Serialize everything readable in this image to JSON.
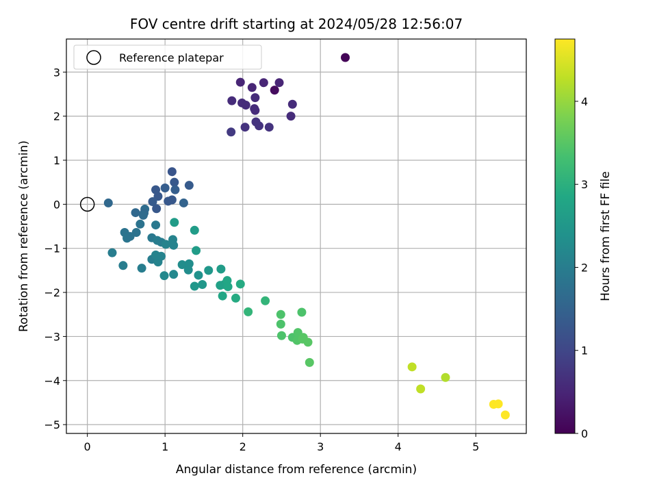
{
  "chart_data": {
    "type": "scatter",
    "title": "FOV centre drift starting at 2024/05/28 12:56:07",
    "xlabel": "Angular distance from reference (arcmin)",
    "ylabel": "Rotation from reference (arcmin)",
    "xlim": [
      -0.27,
      5.65
    ],
    "ylim": [
      -5.2,
      3.75
    ],
    "xticks": [
      0,
      1,
      2,
      3,
      4,
      5
    ],
    "yticks": [
      3,
      2,
      1,
      0,
      -1,
      -2,
      -3,
      -4,
      -5
    ],
    "grid": true,
    "legend": {
      "placement": "upper-left",
      "entries": [
        "Reference platepar"
      ]
    },
    "reference_point": {
      "x": 0,
      "y": 0,
      "label": "Reference platepar"
    },
    "colorbar": {
      "label": "Hours from first FF file",
      "range": [
        0,
        4.75
      ],
      "ticks": [
        0,
        1,
        2,
        3,
        4
      ],
      "colormap": "viridis"
    },
    "points": [
      [
        3.32,
        3.33,
        0.05
      ],
      [
        2.41,
        2.59,
        0.15
      ],
      [
        1.97,
        2.77,
        0.5
      ],
      [
        2.12,
        2.65,
        0.5
      ],
      [
        2.27,
        2.76,
        0.5
      ],
      [
        2.47,
        2.76,
        0.5
      ],
      [
        1.86,
        2.35,
        0.6
      ],
      [
        1.99,
        2.3,
        0.6
      ],
      [
        2.04,
        2.25,
        0.6
      ],
      [
        2.16,
        2.42,
        0.6
      ],
      [
        2.15,
        2.17,
        0.6
      ],
      [
        2.16,
        2.13,
        0.6
      ],
      [
        2.64,
        2.27,
        0.6
      ],
      [
        2.62,
        2.0,
        0.6
      ],
      [
        2.17,
        1.87,
        0.7
      ],
      [
        2.03,
        1.75,
        0.7
      ],
      [
        2.21,
        1.78,
        0.7
      ],
      [
        2.34,
        1.75,
        0.7
      ],
      [
        1.85,
        1.64,
        0.8
      ],
      [
        1.09,
        0.74,
        1.25
      ],
      [
        1.12,
        0.5,
        1.3
      ],
      [
        1.31,
        0.43,
        1.35
      ],
      [
        1.0,
        0.37,
        1.4
      ],
      [
        1.13,
        0.33,
        1.4
      ],
      [
        0.88,
        0.33,
        1.3
      ],
      [
        0.91,
        0.18,
        1.3
      ],
      [
        1.04,
        0.07,
        1.3
      ],
      [
        1.09,
        0.1,
        1.3
      ],
      [
        0.84,
        0.06,
        1.35
      ],
      [
        0.89,
        -0.1,
        1.3
      ],
      [
        0.27,
        0.03,
        1.6
      ],
      [
        1.24,
        0.03,
        1.5
      ],
      [
        0.62,
        -0.19,
        1.6
      ],
      [
        0.74,
        -0.11,
        1.7
      ],
      [
        0.73,
        -0.2,
        1.6
      ],
      [
        0.72,
        -0.25,
        1.65
      ],
      [
        0.68,
        -0.45,
        1.8
      ],
      [
        0.88,
        -0.47,
        1.9
      ],
      [
        0.63,
        -0.64,
        1.8
      ],
      [
        0.48,
        -0.64,
        1.8
      ],
      [
        0.51,
        -0.77,
        1.85
      ],
      [
        0.55,
        -0.73,
        1.8
      ],
      [
        0.83,
        -0.76,
        1.9
      ],
      [
        0.9,
        -0.82,
        2.0
      ],
      [
        0.95,
        -0.86,
        2.0
      ],
      [
        1.01,
        -0.91,
        2.1
      ],
      [
        1.1,
        -0.8,
        2.1
      ],
      [
        1.11,
        -0.93,
        2.1
      ],
      [
        0.32,
        -1.1,
        2.0
      ],
      [
        0.46,
        -1.39,
        2.0
      ],
      [
        0.7,
        -1.45,
        2.0
      ],
      [
        0.83,
        -1.25,
        2.0
      ],
      [
        0.88,
        -1.15,
        2.1
      ],
      [
        0.91,
        -1.31,
        2.1
      ],
      [
        0.95,
        -1.18,
        2.1
      ],
      [
        0.99,
        -1.62,
        2.2
      ],
      [
        1.11,
        -1.59,
        2.2
      ],
      [
        1.22,
        -1.37,
        2.3
      ],
      [
        1.3,
        -1.49,
        2.3
      ],
      [
        1.31,
        -1.35,
        2.3
      ],
      [
        1.43,
        -1.61,
        2.4
      ],
      [
        1.48,
        -1.82,
        2.5
      ],
      [
        1.38,
        -1.86,
        2.5
      ],
      [
        1.56,
        -1.5,
        2.5
      ],
      [
        1.72,
        -1.47,
        2.6
      ],
      [
        1.12,
        -0.41,
        2.6
      ],
      [
        1.38,
        -0.59,
        2.6
      ],
      [
        1.4,
        -1.05,
        2.6
      ],
      [
        1.71,
        -1.84,
        2.7
      ],
      [
        1.76,
        -1.82,
        2.7
      ],
      [
        1.8,
        -1.73,
        2.8
      ],
      [
        1.81,
        -1.87,
        2.8
      ],
      [
        1.74,
        -2.08,
        2.8
      ],
      [
        1.91,
        -2.13,
        2.9
      ],
      [
        1.97,
        -1.81,
        2.9
      ],
      [
        2.07,
        -2.44,
        3.1
      ],
      [
        2.29,
        -2.19,
        3.1
      ],
      [
        2.49,
        -2.5,
        3.4
      ],
      [
        2.76,
        -2.45,
        3.4
      ],
      [
        2.49,
        -2.72,
        3.4
      ],
      [
        2.5,
        -2.98,
        3.4
      ],
      [
        2.64,
        -3.02,
        3.4
      ],
      [
        2.71,
        -2.91,
        3.45
      ],
      [
        2.7,
        -3.09,
        3.45
      ],
      [
        2.77,
        -3.06,
        3.5
      ],
      [
        2.78,
        -3.02,
        3.5
      ],
      [
        2.84,
        -3.13,
        3.5
      ],
      [
        2.86,
        -3.59,
        3.5
      ],
      [
        4.18,
        -3.69,
        4.3
      ],
      [
        4.29,
        -4.19,
        4.3
      ],
      [
        4.61,
        -3.93,
        4.2
      ],
      [
        5.23,
        -4.54,
        4.75
      ],
      [
        5.29,
        -4.53,
        4.75
      ],
      [
        5.38,
        -4.78,
        4.75
      ]
    ]
  }
}
